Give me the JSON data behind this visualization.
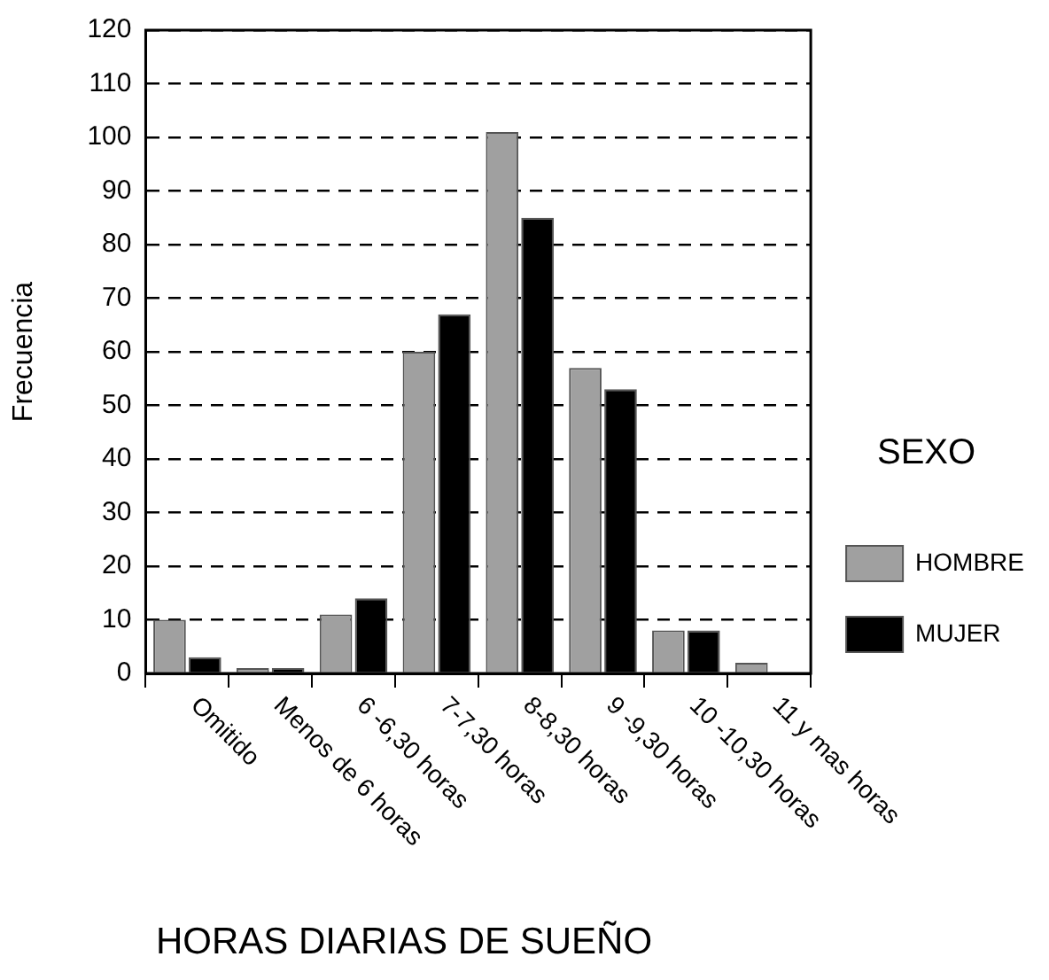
{
  "chart_data": {
    "type": "bar",
    "xlabel": "HORAS DIARIAS DE SUEÑO",
    "ylabel": "Frecuencia",
    "legend_title": "SEXO",
    "categories": [
      "Omitido",
      "Menos de 6 horas",
      "6 -6,30 horas",
      "7-7,30 horas",
      "8-8,30 horas",
      "9 -9,30 horas",
      "10 -10,30 horas",
      "11 y mas horas"
    ],
    "series": [
      {
        "name": "HOMBRE",
        "color": "#a0a0a0",
        "values": [
          10,
          1,
          11,
          60,
          101,
          57,
          8,
          2
        ]
      },
      {
        "name": "MUJER",
        "color": "#000000",
        "values": [
          3,
          1,
          14,
          67,
          85,
          53,
          8,
          0
        ]
      }
    ],
    "ylim": [
      0,
      120
    ],
    "yticks": [
      0,
      10,
      20,
      30,
      40,
      50,
      60,
      70,
      80,
      90,
      100,
      110,
      120
    ],
    "grid": "y",
    "legend": "right"
  }
}
